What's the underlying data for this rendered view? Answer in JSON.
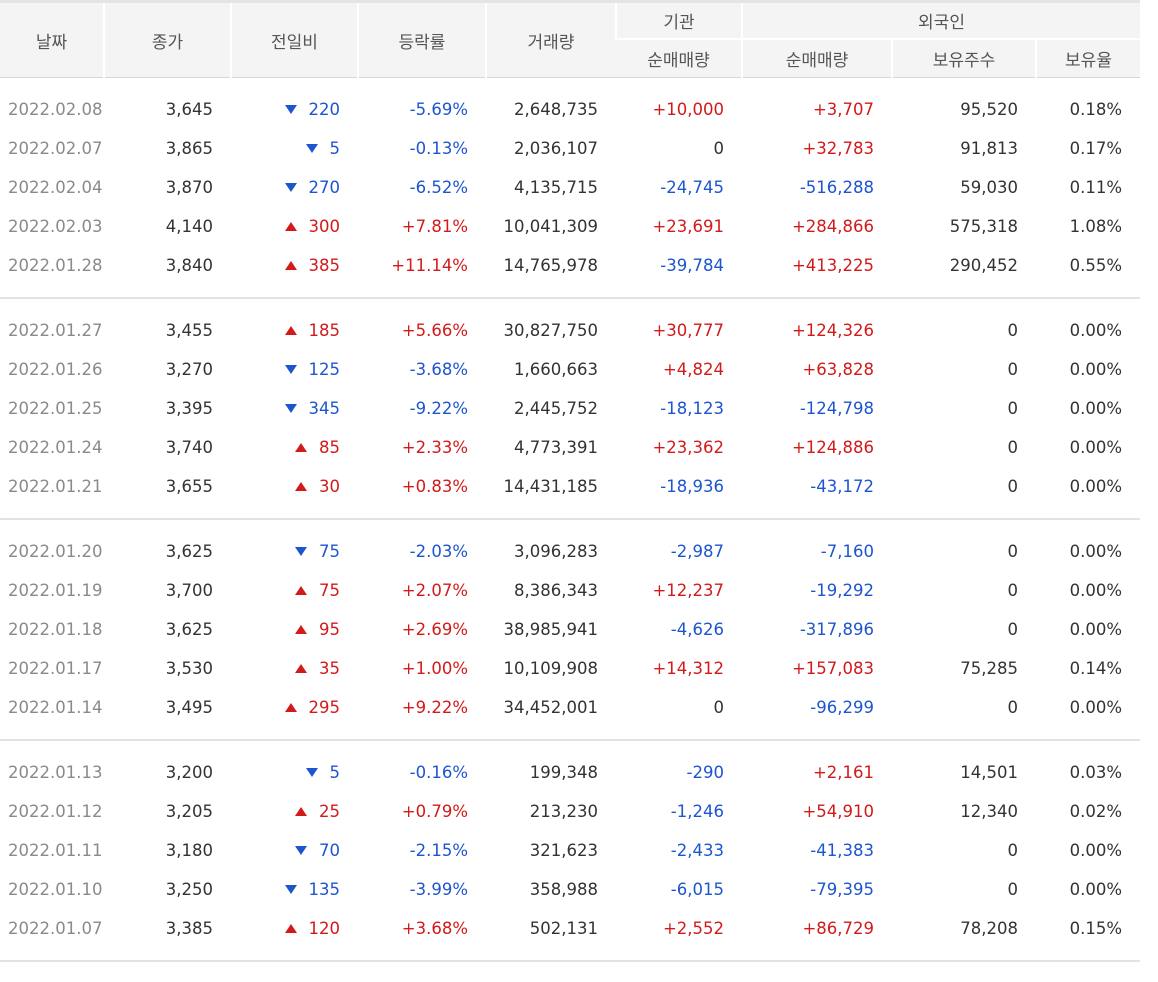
{
  "headers": {
    "date": "날짜",
    "close": "종가",
    "diff": "전일비",
    "rate": "등락률",
    "volume": "거래량",
    "institution": "기관",
    "foreign": "외국인",
    "inst_net": "순매매량",
    "foreign_net": "순매매량",
    "holdings": "보유주수",
    "ratio": "보유율"
  },
  "colors": {
    "up": "#d21a1a",
    "down": "#1d55cf"
  },
  "icons": {
    "up": "triangle-up-icon",
    "down": "triangle-down-icon"
  },
  "groups": [
    [
      {
        "date": "2022.02.08",
        "close": "3,645",
        "dir": "down",
        "diff": "220",
        "rate": "-5.69%",
        "volume": "2,648,735",
        "inst": "+10,000",
        "foreign": "+3,707",
        "holdings": "95,520",
        "ratio": "0.18%"
      },
      {
        "date": "2022.02.07",
        "close": "3,865",
        "dir": "down",
        "diff": "5",
        "rate": "-0.13%",
        "volume": "2,036,107",
        "inst": "0",
        "foreign": "+32,783",
        "holdings": "91,813",
        "ratio": "0.17%"
      },
      {
        "date": "2022.02.04",
        "close": "3,870",
        "dir": "down",
        "diff": "270",
        "rate": "-6.52%",
        "volume": "4,135,715",
        "inst": "-24,745",
        "foreign": "-516,288",
        "holdings": "59,030",
        "ratio": "0.11%"
      },
      {
        "date": "2022.02.03",
        "close": "4,140",
        "dir": "up",
        "diff": "300",
        "rate": "+7.81%",
        "volume": "10,041,309",
        "inst": "+23,691",
        "foreign": "+284,866",
        "holdings": "575,318",
        "ratio": "1.08%"
      },
      {
        "date": "2022.01.28",
        "close": "3,840",
        "dir": "up",
        "diff": "385",
        "rate": "+11.14%",
        "volume": "14,765,978",
        "inst": "-39,784",
        "foreign": "+413,225",
        "holdings": "290,452",
        "ratio": "0.55%"
      }
    ],
    [
      {
        "date": "2022.01.27",
        "close": "3,455",
        "dir": "up",
        "diff": "185",
        "rate": "+5.66%",
        "volume": "30,827,750",
        "inst": "+30,777",
        "foreign": "+124,326",
        "holdings": "0",
        "ratio": "0.00%"
      },
      {
        "date": "2022.01.26",
        "close": "3,270",
        "dir": "down",
        "diff": "125",
        "rate": "-3.68%",
        "volume": "1,660,663",
        "inst": "+4,824",
        "foreign": "+63,828",
        "holdings": "0",
        "ratio": "0.00%"
      },
      {
        "date": "2022.01.25",
        "close": "3,395",
        "dir": "down",
        "diff": "345",
        "rate": "-9.22%",
        "volume": "2,445,752",
        "inst": "-18,123",
        "foreign": "-124,798",
        "holdings": "0",
        "ratio": "0.00%"
      },
      {
        "date": "2022.01.24",
        "close": "3,740",
        "dir": "up",
        "diff": "85",
        "rate": "+2.33%",
        "volume": "4,773,391",
        "inst": "+23,362",
        "foreign": "+124,886",
        "holdings": "0",
        "ratio": "0.00%"
      },
      {
        "date": "2022.01.21",
        "close": "3,655",
        "dir": "up",
        "diff": "30",
        "rate": "+0.83%",
        "volume": "14,431,185",
        "inst": "-18,936",
        "foreign": "-43,172",
        "holdings": "0",
        "ratio": "0.00%"
      }
    ],
    [
      {
        "date": "2022.01.20",
        "close": "3,625",
        "dir": "down",
        "diff": "75",
        "rate": "-2.03%",
        "volume": "3,096,283",
        "inst": "-2,987",
        "foreign": "-7,160",
        "holdings": "0",
        "ratio": "0.00%"
      },
      {
        "date": "2022.01.19",
        "close": "3,700",
        "dir": "up",
        "diff": "75",
        "rate": "+2.07%",
        "volume": "8,386,343",
        "inst": "+12,237",
        "foreign": "-19,292",
        "holdings": "0",
        "ratio": "0.00%"
      },
      {
        "date": "2022.01.18",
        "close": "3,625",
        "dir": "up",
        "diff": "95",
        "rate": "+2.69%",
        "volume": "38,985,941",
        "inst": "-4,626",
        "foreign": "-317,896",
        "holdings": "0",
        "ratio": "0.00%"
      },
      {
        "date": "2022.01.17",
        "close": "3,530",
        "dir": "up",
        "diff": "35",
        "rate": "+1.00%",
        "volume": "10,109,908",
        "inst": "+14,312",
        "foreign": "+157,083",
        "holdings": "75,285",
        "ratio": "0.14%"
      },
      {
        "date": "2022.01.14",
        "close": "3,495",
        "dir": "up",
        "diff": "295",
        "rate": "+9.22%",
        "volume": "34,452,001",
        "inst": "0",
        "foreign": "-96,299",
        "holdings": "0",
        "ratio": "0.00%"
      }
    ],
    [
      {
        "date": "2022.01.13",
        "close": "3,200",
        "dir": "down",
        "diff": "5",
        "rate": "-0.16%",
        "volume": "199,348",
        "inst": "-290",
        "foreign": "+2,161",
        "holdings": "14,501",
        "ratio": "0.03%"
      },
      {
        "date": "2022.01.12",
        "close": "3,205",
        "dir": "up",
        "diff": "25",
        "rate": "+0.79%",
        "volume": "213,230",
        "inst": "-1,246",
        "foreign": "+54,910",
        "holdings": "12,340",
        "ratio": "0.02%"
      },
      {
        "date": "2022.01.11",
        "close": "3,180",
        "dir": "down",
        "diff": "70",
        "rate": "-2.15%",
        "volume": "321,623",
        "inst": "-2,433",
        "foreign": "-41,383",
        "holdings": "0",
        "ratio": "0.00%"
      },
      {
        "date": "2022.01.10",
        "close": "3,250",
        "dir": "down",
        "diff": "135",
        "rate": "-3.99%",
        "volume": "358,988",
        "inst": "-6,015",
        "foreign": "-79,395",
        "holdings": "0",
        "ratio": "0.00%"
      },
      {
        "date": "2022.01.07",
        "close": "3,385",
        "dir": "up",
        "diff": "120",
        "rate": "+3.68%",
        "volume": "502,131",
        "inst": "+2,552",
        "foreign": "+86,729",
        "holdings": "78,208",
        "ratio": "0.15%"
      }
    ]
  ]
}
